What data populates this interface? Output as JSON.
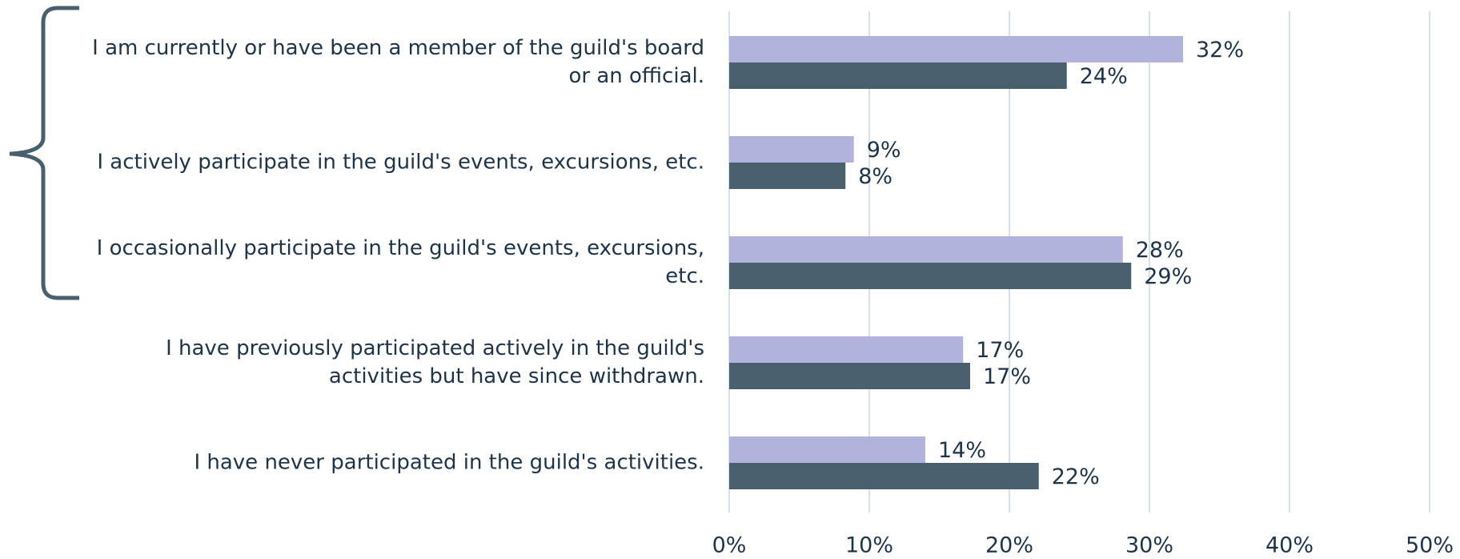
{
  "chart_data": {
    "type": "bar",
    "orientation": "horizontal",
    "categories": [
      "I am currently or have been a member of the guild's board or an official.",
      "I actively participate in the guild's events, excursions, etc.",
      "I occasionally participate in the guild's events, excursions, etc.",
      "I have previously participated actively in the guild's activities but have since withdrawn.",
      "I have never participated in the guild's activities."
    ],
    "series": [
      {
        "color": "#b1b3dc",
        "values": [
          32.4,
          8.9,
          28.1,
          16.7,
          14.0
        ],
        "value_labels": [
          "32%",
          "9%",
          "28%",
          "17%",
          "14%"
        ]
      },
      {
        "color": "#4a5f6e",
        "values": [
          24.1,
          8.3,
          28.7,
          17.2,
          22.1
        ],
        "value_labels": [
          "24%",
          "8%",
          "29%",
          "17%",
          "22%"
        ]
      }
    ],
    "xlim": [
      0,
      50
    ],
    "xticks": [
      {
        "value": 0,
        "label": "0%"
      },
      {
        "value": 10,
        "label": "10%"
      },
      {
        "value": 20,
        "label": "20%"
      },
      {
        "value": 30,
        "label": "30%"
      },
      {
        "value": 40,
        "label": "40%"
      },
      {
        "value": 50,
        "label": "50%"
      }
    ],
    "grid": true
  }
}
